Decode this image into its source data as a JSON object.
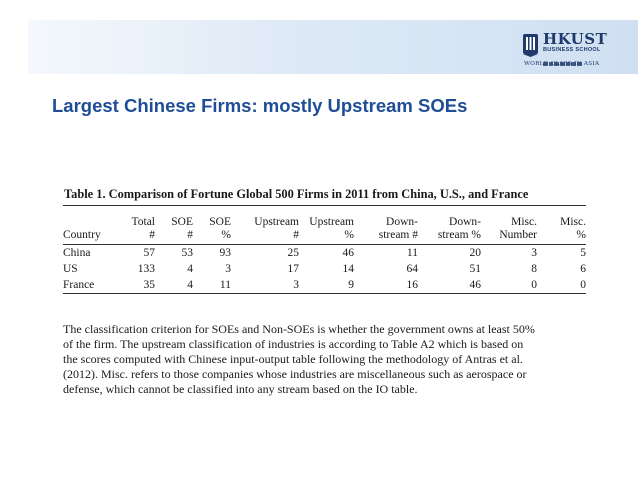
{
  "logo": {
    "name": "HKUST",
    "school": "BUSINESS SCHOOL",
    "tagline": "WORLD CLASS IN ASIA"
  },
  "colors": {
    "title": "#1f4e96",
    "logo": "#1f3a6b",
    "header_band": "#dde9f6"
  },
  "slide": {
    "title": "Largest Chinese Firms: mostly Upstream SOEs"
  },
  "table": {
    "caption": "Table 1. Comparison of Fortune Global 500 Firms in 2011 from China, U.S., and France",
    "headers": [
      [
        "Country"
      ],
      [
        "Total",
        "#"
      ],
      [
        "SOE",
        "#"
      ],
      [
        "SOE",
        "%"
      ],
      [
        "Upstream",
        "#"
      ],
      [
        "Upstream",
        "%"
      ],
      [
        "Down-",
        "stream #"
      ],
      [
        "Down-",
        "stream %"
      ],
      [
        "Misc.",
        "Number"
      ],
      [
        "Misc.",
        "%"
      ]
    ],
    "rows": [
      [
        "China",
        "57",
        "53",
        "93",
        "25",
        "46",
        "11",
        "20",
        "3",
        "5"
      ],
      [
        "US",
        "133",
        "4",
        "3",
        "17",
        "14",
        "64",
        "51",
        "8",
        "6"
      ],
      [
        "France",
        "35",
        "4",
        "11",
        "3",
        "9",
        "16",
        "46",
        "0",
        "0"
      ]
    ]
  },
  "note": {
    "lines": [
      "The classification criterion for SOEs and Non-SOEs is whether the government owns at least 50%",
      "of the firm. The upstream classification of industries is according to Table A2 which is based on",
      "the scores computed with Chinese input-output table following the methodology of Antras et al.",
      "(2012). Misc. refers to those companies whose industries are miscellaneous such as aerospace or",
      "defense, which cannot be classified into any stream based on the IO table."
    ]
  }
}
